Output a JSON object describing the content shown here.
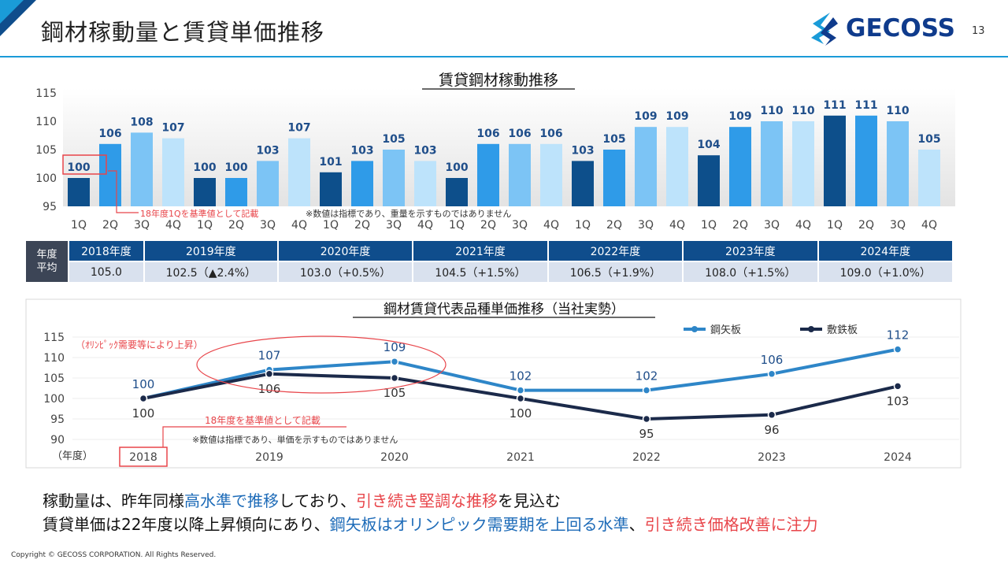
{
  "header": {
    "title": "鋼材稼動量と賃貸単価推移",
    "logo_text": "GECOSS",
    "page_number": "13"
  },
  "colors": {
    "accent": "#1a9bd8",
    "navy": "#0f4d8c",
    "red": "#e8454a",
    "bar_q1": "#0d4f8b",
    "bar_q2": "#2f9be8",
    "bar_q3": "#7cc4f5",
    "bar_q4": "#bde3fb",
    "line_kouyaita": "#2e86c8",
    "line_shikiteppan": "#1b2a4a"
  },
  "chart_data": [
    {
      "type": "bar",
      "title": "賃貸鋼材稼動推移",
      "ylim": [
        95,
        115
      ],
      "yticks": [
        "115",
        "110",
        "105",
        "100",
        "95"
      ],
      "categories": [
        "1Q",
        "2Q",
        "3Q",
        "4Q",
        "1Q",
        "2Q",
        "3Q",
        "4Q",
        "1Q",
        "2Q",
        "3Q",
        "4Q",
        "1Q",
        "2Q",
        "3Q",
        "4Q",
        "1Q",
        "2Q",
        "3Q",
        "4Q",
        "1Q",
        "2Q",
        "3Q",
        "4Q",
        "1Q",
        "2Q",
        "3Q",
        "4Q"
      ],
      "values": [
        100,
        106,
        108,
        107,
        100,
        100,
        103,
        107,
        101,
        103,
        105,
        103,
        100,
        106,
        106,
        106,
        103,
        105,
        109,
        109,
        104,
        109,
        110,
        110,
        111,
        111,
        110,
        105
      ],
      "annotations": {
        "baseline_note": "18年度1Qを基準値として記載",
        "disclaimer": "※数値は指標であり、重量を示すものではありません"
      }
    },
    {
      "type": "line",
      "title": "鋼材賃貸代表品種単価推移（当社実勢）",
      "ylim": [
        90,
        115
      ],
      "yticks": [
        "115",
        "110",
        "105",
        "100",
        "95",
        "90"
      ],
      "x": [
        "2018",
        "2019",
        "2020",
        "2021",
        "2022",
        "2023",
        "2024"
      ],
      "xlabel": "（年度）",
      "series": [
        {
          "name": "鋼矢板",
          "values": [
            100,
            107,
            109,
            102,
            102,
            106,
            112
          ]
        },
        {
          "name": "敷鉄板",
          "values": [
            100,
            106,
            105,
            100,
            95,
            96,
            103
          ]
        }
      ],
      "annotations": {
        "olympic_note": "（ｵﾘﾝﾋﾟｯｸ需要等により上昇）",
        "baseline_note": "18年度を基準値として記載",
        "disclaimer": "※数値は指標であり、単価を示すものではありません"
      }
    }
  ],
  "table": {
    "lead": [
      "年度",
      "平均"
    ],
    "headers": [
      "2018年度",
      "2019年度",
      "2020年度",
      "2021年度",
      "2022年度",
      "2023年度",
      "2024年度"
    ],
    "values": [
      "105.0",
      "102.5（▲2.4%）",
      "103.0（+0.5%）",
      "104.5（+1.5%）",
      "106.5（+1.9%）",
      "108.0（+1.5%）",
      "109.0（+1.0%）"
    ]
  },
  "messages": {
    "line1": {
      "p1": "稼動量は、昨年同様",
      "p2": "高水準で推移",
      "p3": "しており、",
      "p4": "引き続き堅調な推移",
      "p5": "を見込む"
    },
    "line2": {
      "p1": "賃貸単価は22年度以降上昇傾向にあり、",
      "p2": "鋼矢板はオリンピック需要期を上回る水準",
      "p3": "、",
      "p4": "引き続き価格改善に注力"
    }
  },
  "footer": {
    "copyright": "Copyright © GECOSS CORPORATION. All Rights Reserved."
  }
}
